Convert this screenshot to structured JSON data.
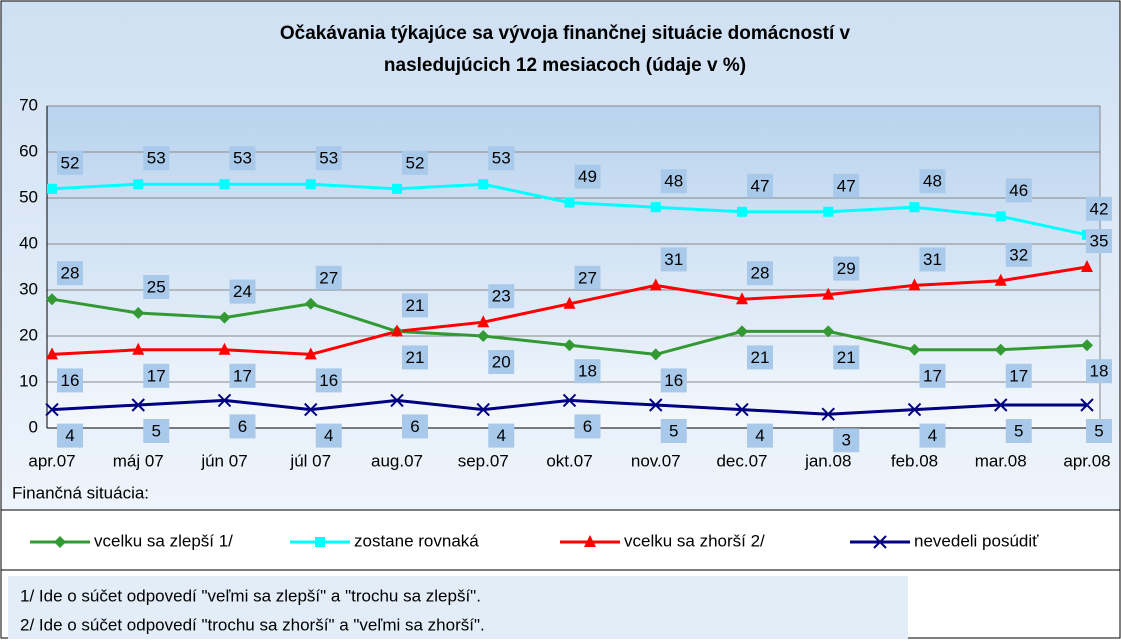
{
  "chart_data": {
    "type": "line",
    "title": [
      "Očakávania týkajúce sa vývoja finančnej situácie domácností v",
      "nasledujúcich 12 mesiacoch  (údaje v %)"
    ],
    "x_label": "Finančná situácia:",
    "categories": [
      "apr.07",
      "máj 07",
      "jún 07",
      "júl 07",
      "aug.07",
      "sep.07",
      "okt.07",
      "nov.07",
      "dec.07",
      "jan.08",
      "feb.08",
      "mar.08",
      "apr.08"
    ],
    "series": [
      {
        "name": "vcelku sa zlepší 1/",
        "color": "#339933",
        "marker": "diamond",
        "values": [
          28,
          25,
          24,
          27,
          21,
          20,
          18,
          16,
          21,
          21,
          17,
          17,
          18
        ]
      },
      {
        "name": "zostane rovnaká",
        "color": "#00ffff",
        "marker": "square",
        "values": [
          52,
          53,
          53,
          53,
          52,
          53,
          49,
          48,
          47,
          47,
          48,
          46,
          42
        ]
      },
      {
        "name": "vcelku sa zhorší 2/",
        "color": "#ff0000",
        "marker": "triangle",
        "values": [
          16,
          17,
          17,
          16,
          21,
          23,
          27,
          31,
          28,
          29,
          31,
          32,
          35
        ]
      },
      {
        "name": "nevedeli posúdiť",
        "color": "#000080",
        "marker": "x",
        "values": [
          4,
          5,
          6,
          4,
          6,
          4,
          6,
          5,
          4,
          3,
          4,
          5,
          5
        ]
      }
    ],
    "ylim": [
      0,
      70
    ],
    "yticks": [
      0,
      10,
      20,
      30,
      40,
      50,
      60,
      70
    ],
    "grid": true,
    "footnotes": [
      "1/ Ide o súčet odpovedí \"veľmi sa zlepší\" a \"trochu sa zlepší\".",
      "2/ Ide o súčet odpovedí \"trochu sa zhorší\" a \"veľmi sa zhorší\"."
    ]
  }
}
